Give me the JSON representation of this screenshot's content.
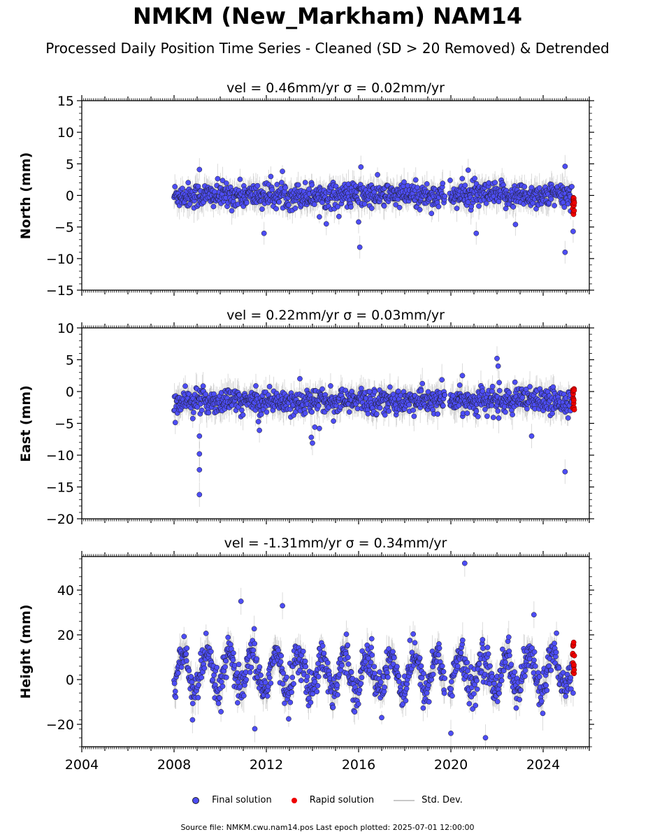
{
  "figure": {
    "title": "NMKM (New_Markham) NAM14",
    "subtitle": "Processed Daily Position Time Series - Cleaned (SD > 20 Removed) & Detrended",
    "footer": "Source file: NMKM.cwu.nam14.pos  Last epoch plotted: 2025-07-01 12:00:00"
  },
  "legend": {
    "final_label": "Final solution",
    "rapid_label": "Rapid solution",
    "sd_label": "Std. Dev."
  },
  "colors": {
    "final": "#4d4df5",
    "rapid": "#ee0000",
    "std_dev": "#c8c8c8"
  },
  "chart_data": [
    {
      "type": "scatter",
      "title": "vel = 0.46mm/yr   σ = 0.02mm/yr",
      "ylabel": "North (mm)",
      "xlim": [
        2004,
        2026
      ],
      "ylim": [
        -15,
        15
      ],
      "yticks": [
        -15,
        -10,
        -5,
        0,
        5,
        10,
        15
      ],
      "xticks": [
        2004,
        2008,
        2012,
        2016,
        2020,
        2024
      ],
      "show_xtick_labels": false,
      "series": [
        {
          "name": "Final solution",
          "x": [
            2008,
            2025.25
          ],
          "band_mean": 0,
          "band_half_width": 1.3,
          "noise": 1.0,
          "std_dev": 1.5
        },
        {
          "name": "Rapid solution",
          "x": [
            2025.28,
            2025.35
          ],
          "band_mean": -1.2,
          "band_half_width": 1.8
        }
      ],
      "gap": [
        2019.75,
        2019.95
      ],
      "outliers": [
        {
          "x": 2009.1,
          "y": 4.1
        },
        {
          "x": 2011.9,
          "y": -6.0
        },
        {
          "x": 2016.05,
          "y": -8.2
        },
        {
          "x": 2016.1,
          "y": 4.5
        },
        {
          "x": 2016.0,
          "y": -4.2
        },
        {
          "x": 2014.6,
          "y": -4.5
        },
        {
          "x": 2024.95,
          "y": 4.6
        },
        {
          "x": 2024.95,
          "y": -9.0
        },
        {
          "x": 2021.1,
          "y": -6.0
        },
        {
          "x": 2020.75,
          "y": 4.0
        },
        {
          "x": 2022.8,
          "y": -4.6
        },
        {
          "x": 2025.3,
          "y": -5.7
        }
      ]
    },
    {
      "type": "scatter",
      "title": "vel = 0.22mm/yr   σ = 0.03mm/yr",
      "ylabel": "East (mm)",
      "xlim": [
        2004,
        2026
      ],
      "ylim": [
        -20,
        10
      ],
      "yticks": [
        -20,
        -15,
        -10,
        -5,
        0,
        5,
        10
      ],
      "xticks": [
        2004,
        2008,
        2012,
        2016,
        2020,
        2024
      ],
      "show_xtick_labels": false,
      "series": [
        {
          "name": "Final solution",
          "x": [
            2008,
            2025.25
          ],
          "band_mean": -1.5,
          "band_half_width": 1.4,
          "noise": 1.0,
          "std_dev": 1.6
        },
        {
          "name": "Rapid solution",
          "x": [
            2025.28,
            2025.35
          ],
          "band_mean": -1.3,
          "band_half_width": 1.8
        }
      ],
      "gap": [
        2019.75,
        2019.95
      ],
      "outliers": [
        {
          "x": 2009.1,
          "y": -7.0
        },
        {
          "x": 2009.1,
          "y": -9.8
        },
        {
          "x": 2009.1,
          "y": -12.3
        },
        {
          "x": 2009.1,
          "y": -16.2
        },
        {
          "x": 2013.95,
          "y": -7.2
        },
        {
          "x": 2014.0,
          "y": -8.1
        },
        {
          "x": 2014.1,
          "y": -5.6
        },
        {
          "x": 2014.3,
          "y": -5.8
        },
        {
          "x": 2022.0,
          "y": 5.2
        },
        {
          "x": 2022.05,
          "y": 4.0
        },
        {
          "x": 2023.5,
          "y": -7.0
        },
        {
          "x": 2024.95,
          "y": -12.6
        },
        {
          "x": 2020.5,
          "y": 2.5
        },
        {
          "x": 2011.7,
          "y": -6.1
        }
      ]
    },
    {
      "type": "scatter",
      "title": "vel = -1.31mm/yr   σ = 0.34mm/yr",
      "ylabel": "Height (mm)",
      "xlim": [
        2004,
        2026
      ],
      "ylim": [
        -30,
        55
      ],
      "yticks": [
        -20,
        0,
        20,
        40
      ],
      "xticks": [
        2004,
        2008,
        2012,
        2016,
        2020,
        2024
      ],
      "show_xtick_labels": true,
      "series": [
        {
          "name": "Final solution",
          "x": [
            2008,
            2025.25
          ],
          "band_mean": 3,
          "seasonal_amplitude": 8,
          "band_half_width": 7,
          "noise": 4,
          "std_dev": 5
        },
        {
          "name": "Rapid solution",
          "x": [
            2025.28,
            2025.35
          ],
          "band_mean": 9,
          "band_half_width": 8
        }
      ],
      "gap": [
        2019.75,
        2019.95
      ],
      "outliers": [
        {
          "x": 2020.6,
          "y": 52
        },
        {
          "x": 2010.9,
          "y": 35
        },
        {
          "x": 2012.7,
          "y": 33
        },
        {
          "x": 2021.5,
          "y": -26
        },
        {
          "x": 2023.6,
          "y": 29
        },
        {
          "x": 2011.5,
          "y": -22
        },
        {
          "x": 2020.0,
          "y": -24
        },
        {
          "x": 2008.8,
          "y": -18
        },
        {
          "x": 2025.3,
          "y": -6
        }
      ]
    }
  ]
}
